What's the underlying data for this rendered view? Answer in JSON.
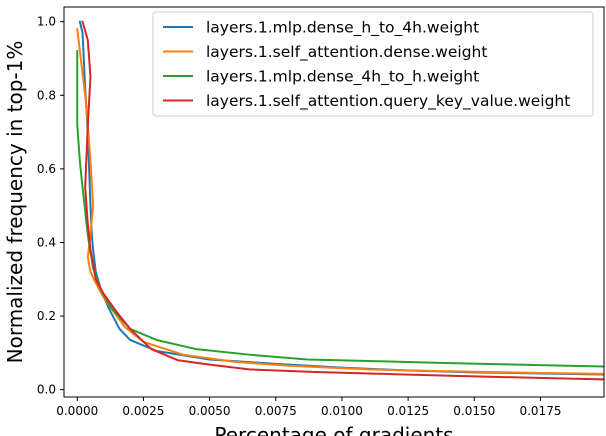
{
  "chart_data": {
    "type": "line",
    "xlabel": "Percentage of gradients",
    "ylabel": "Normalized frequency in top-1%",
    "xlim": [
      -0.0005,
      0.0199
    ],
    "ylim": [
      -0.02,
      1.04
    ],
    "xticks": [
      "0.0000",
      "0.0025",
      "0.0050",
      "0.0075",
      "0.0100",
      "0.0125",
      "0.0150",
      "0.0175"
    ],
    "xtick_values": [
      0,
      0.0025,
      0.005,
      0.0075,
      0.01,
      0.0125,
      0.015,
      0.0175
    ],
    "yticks": [
      "0.0",
      "0.2",
      "0.4",
      "0.6",
      "0.8",
      "1.0"
    ],
    "ytick_values": [
      0,
      0.2,
      0.4,
      0.6,
      0.8,
      1.0
    ],
    "grid": false,
    "legend_position": "top-right",
    "series": [
      {
        "name": "layers.1.mlp.dense_h_to_4h.weight",
        "color": "#1f77b4",
        "x": [
          0.0001,
          0.0002,
          0.0003,
          0.0004,
          0.0005,
          0.00055,
          0.0006,
          0.0007,
          0.0009,
          0.0012,
          0.0016,
          0.002,
          0.003,
          0.005,
          0.0075,
          0.01,
          0.0125,
          0.015,
          0.0175,
          0.0199
        ],
        "y": [
          1.0,
          0.97,
          0.82,
          0.7,
          0.5,
          0.42,
          0.38,
          0.32,
          0.27,
          0.22,
          0.165,
          0.135,
          0.105,
          0.082,
          0.07,
          0.06,
          0.052,
          0.047,
          0.044,
          0.041
        ]
      },
      {
        "name": "layers.1.self_attention.dense.weight",
        "color": "#ff7f0e",
        "x": [
          0.0,
          0.0001,
          0.0002,
          0.0003,
          0.0004,
          0.0005,
          0.0006,
          0.0005,
          0.0004,
          0.0005,
          0.0007,
          0.001,
          0.0014,
          0.0018,
          0.0025,
          0.004,
          0.006,
          0.008,
          0.011,
          0.014,
          0.017,
          0.0199
        ],
        "y": [
          0.98,
          0.92,
          0.86,
          0.8,
          0.72,
          0.62,
          0.5,
          0.42,
          0.36,
          0.32,
          0.29,
          0.25,
          0.21,
          0.17,
          0.13,
          0.095,
          0.075,
          0.065,
          0.055,
          0.05,
          0.046,
          0.043
        ]
      },
      {
        "name": "layers.1.mlp.dense_4h_to_h.weight",
        "color": "#2ca02c",
        "x": [
          0.0,
          0.0,
          0.0001,
          0.0002,
          0.0004,
          0.0006,
          0.0009,
          0.0013,
          0.002,
          0.003,
          0.0045,
          0.0065,
          0.0087,
          0.011,
          0.0135,
          0.016,
          0.0185,
          0.0199
        ],
        "y": [
          0.92,
          0.72,
          0.62,
          0.55,
          0.42,
          0.33,
          0.27,
          0.22,
          0.165,
          0.135,
          0.11,
          0.095,
          0.082,
          0.078,
          0.073,
          0.069,
          0.065,
          0.063
        ]
      },
      {
        "name": "layers.1.self_attention.query_key_value.weight",
        "color": "#d62728",
        "x": [
          0.0002,
          0.0004,
          0.0005,
          0.0004,
          0.0003,
          0.0004,
          0.0005,
          0.0007,
          0.001,
          0.0015,
          0.002,
          0.0028,
          0.0038,
          0.005,
          0.0065,
          0.009,
          0.012,
          0.015,
          0.018,
          0.0199
        ],
        "y": [
          1.0,
          0.95,
          0.85,
          0.72,
          0.55,
          0.45,
          0.38,
          0.3,
          0.26,
          0.21,
          0.165,
          0.11,
          0.08,
          0.068,
          0.055,
          0.048,
          0.042,
          0.036,
          0.031,
          0.028
        ]
      }
    ]
  }
}
